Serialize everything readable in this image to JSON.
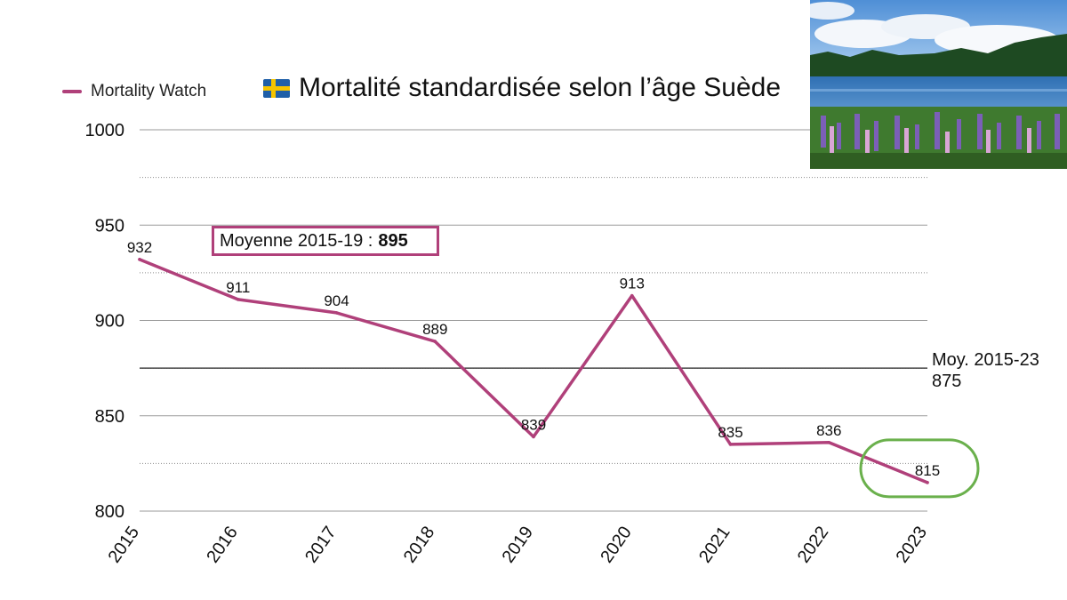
{
  "colors": {
    "series": "#b0407a",
    "highlight": "#6ab04c",
    "flag_blue": "#1f5fa8",
    "flag_yellow": "#f5c400",
    "grid": "#777777"
  },
  "title": "Mortalité standardisée selon l’âge Suède",
  "title_icon": "sweden-flag-icon",
  "photo": "landscape-photo-lake-lupins",
  "avg_box": {
    "label": "Moyenne 2015-19 :",
    "value": "895"
  },
  "ref_line": {
    "line1": "Moy. 2015-23",
    "line2": "875"
  },
  "chart_data": {
    "type": "line",
    "categories": [
      "2015",
      "2016",
      "2017",
      "2018",
      "2019",
      "2020",
      "2021",
      "2022",
      "2023"
    ],
    "series": [
      {
        "name": "Mortality Watch",
        "values": [
          932,
          911,
          904,
          889,
          839,
          913,
          835,
          836,
          815
        ]
      }
    ],
    "data_labels": [
      "932",
      "911",
      "904",
      "889",
      "839",
      "913",
      "835",
      "836",
      "815"
    ],
    "yticks": [
      800,
      850,
      900,
      950,
      1000
    ],
    "ylim": [
      800,
      1000
    ],
    "grid": true,
    "reference_line": 875,
    "highlight_category": "2023",
    "legend_position": "top-left"
  }
}
